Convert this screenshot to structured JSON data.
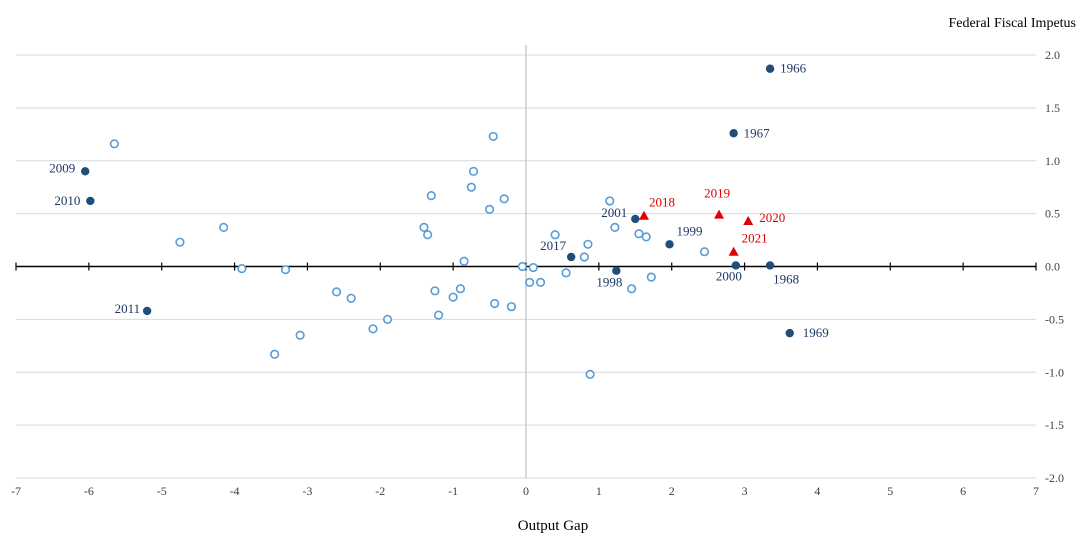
{
  "chart_data": {
    "type": "scatter",
    "title": "",
    "xlabel": "Output Gap",
    "ylabel": "Federal Fiscal Impetus",
    "xlim": [
      -7,
      7
    ],
    "ylim": [
      -2.0,
      2.0
    ],
    "x_ticks": [
      -7,
      -6,
      -5,
      -4,
      -3,
      -2,
      -1,
      0,
      1,
      2,
      3,
      4,
      5,
      6,
      7
    ],
    "x_tick_labels": [
      "-7",
      "-6",
      "-5",
      "-4",
      "-3",
      "-2",
      "-1",
      "0",
      "1",
      "2",
      "3",
      "4",
      "5",
      "6",
      "7"
    ],
    "y_ticks": [
      2.0,
      1.5,
      1.0,
      0.5,
      0.0,
      -0.5,
      -1.0,
      -1.5,
      -2.0
    ],
    "y_tick_labels": [
      "2.0",
      "1.5",
      "1.0",
      "0.5",
      "0.0",
      "-0.5",
      "-1.0",
      "-1.5",
      "-2.0"
    ],
    "grid": "horizontal",
    "colors": {
      "filled": "#1f4e79",
      "hollow": "#5b9bd5",
      "highlight": "#e00000",
      "grid": "#d9d9d9",
      "axis": "#000000",
      "text": "#1f3864"
    },
    "series": [
      {
        "marker": "hollow-circle",
        "points": [
          [
            -5.65,
            1.16
          ],
          [
            -4.75,
            0.23
          ],
          [
            -4.15,
            0.37
          ],
          [
            -3.9,
            -0.02
          ],
          [
            -3.3,
            -0.03
          ],
          [
            -3.45,
            -0.83
          ],
          [
            -3.1,
            -0.65
          ],
          [
            -2.6,
            -0.24
          ],
          [
            -2.4,
            -0.3
          ],
          [
            -2.1,
            -0.59
          ],
          [
            -1.9,
            -0.5
          ],
          [
            -1.4,
            0.37
          ],
          [
            -1.35,
            0.3
          ],
          [
            -1.3,
            0.67
          ],
          [
            -1.25,
            -0.23
          ],
          [
            -1.2,
            -0.46
          ],
          [
            -1.0,
            -0.29
          ],
          [
            -0.9,
            -0.21
          ],
          [
            -0.85,
            0.05
          ],
          [
            -0.75,
            0.75
          ],
          [
            -0.72,
            0.9
          ],
          [
            -0.5,
            0.54
          ],
          [
            -0.45,
            1.23
          ],
          [
            -0.43,
            -0.35
          ],
          [
            -0.3,
            0.64
          ],
          [
            -0.2,
            -0.38
          ],
          [
            -0.05,
            0.0
          ],
          [
            0.05,
            -0.15
          ],
          [
            0.1,
            -0.01
          ],
          [
            0.2,
            -0.15
          ],
          [
            0.4,
            0.3
          ],
          [
            0.55,
            -0.06
          ],
          [
            0.8,
            0.09
          ],
          [
            0.85,
            0.21
          ],
          [
            0.88,
            -1.02
          ],
          [
            1.15,
            0.62
          ],
          [
            1.22,
            0.37
          ],
          [
            1.45,
            -0.21
          ],
          [
            1.55,
            0.31
          ],
          [
            1.65,
            0.28
          ],
          [
            1.72,
            -0.1
          ],
          [
            2.45,
            0.14
          ]
        ]
      },
      {
        "marker": "filled-circle",
        "points": [
          {
            "x": 3.35,
            "y": 1.87,
            "label": "1966"
          },
          {
            "x": 2.85,
            "y": 1.26,
            "label": "1967"
          },
          {
            "x": -6.05,
            "y": 0.9,
            "label": "2009"
          },
          {
            "x": -5.98,
            "y": 0.62,
            "label": "2010"
          },
          {
            "x": 1.5,
            "y": 0.45,
            "label": "2001"
          },
          {
            "x": 1.97,
            "y": 0.21,
            "label": "1999"
          },
          {
            "x": 0.62,
            "y": 0.09,
            "label": "2017"
          },
          {
            "x": 1.24,
            "y": -0.04,
            "label": "1998"
          },
          {
            "x": 2.88,
            "y": 0.01,
            "label": "2000"
          },
          {
            "x": 3.35,
            "y": 0.01,
            "label": "1968"
          },
          {
            "x": -5.2,
            "y": -0.42,
            "label": "2011"
          },
          {
            "x": 3.62,
            "y": -0.63,
            "label": "1969"
          }
        ]
      },
      {
        "marker": "triangle",
        "points": [
          {
            "x": 1.62,
            "y": 0.48,
            "label": "2018"
          },
          {
            "x": 2.65,
            "y": 0.49,
            "label": "2019"
          },
          {
            "x": 3.05,
            "y": 0.43,
            "label": "2020"
          },
          {
            "x": 2.85,
            "y": 0.14,
            "label": "2021"
          }
        ]
      }
    ]
  }
}
